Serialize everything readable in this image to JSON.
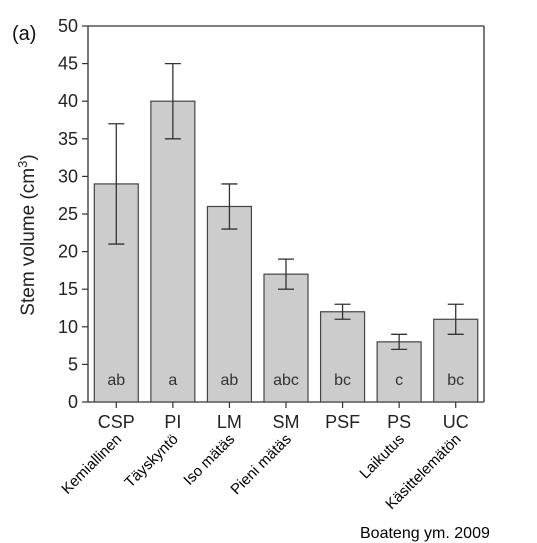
{
  "chart_data": {
    "type": "bar",
    "panel_label": "(a)",
    "ylabel_main": "Stem volume (cm",
    "ylabel_sup": "3",
    "ylabel_close": ")",
    "ylim": [
      0,
      50
    ],
    "yticks": [
      0,
      5,
      10,
      15,
      20,
      25,
      30,
      35,
      40,
      45,
      50
    ],
    "categories": [
      "CSP",
      "PI",
      "LM",
      "SM",
      "PSF",
      "PS",
      "UC"
    ],
    "values": [
      29,
      40,
      26,
      17,
      12,
      8,
      11
    ],
    "error_low": [
      21,
      35,
      23,
      15,
      11,
      7,
      9
    ],
    "error_high": [
      37,
      45,
      29,
      19,
      13,
      9,
      13
    ],
    "significance": [
      "ab",
      "a",
      "ab",
      "abc",
      "bc",
      "c",
      "bc"
    ],
    "finnish_labels": [
      "Kemiallinen",
      "Täyskyntö",
      "Iso mätäs",
      "Pieni mätäs",
      "",
      "Laikutus",
      "Käsittelemätön"
    ],
    "bar_color": "#cccccc",
    "grid": false,
    "source": "Boateng ym. 2009"
  }
}
